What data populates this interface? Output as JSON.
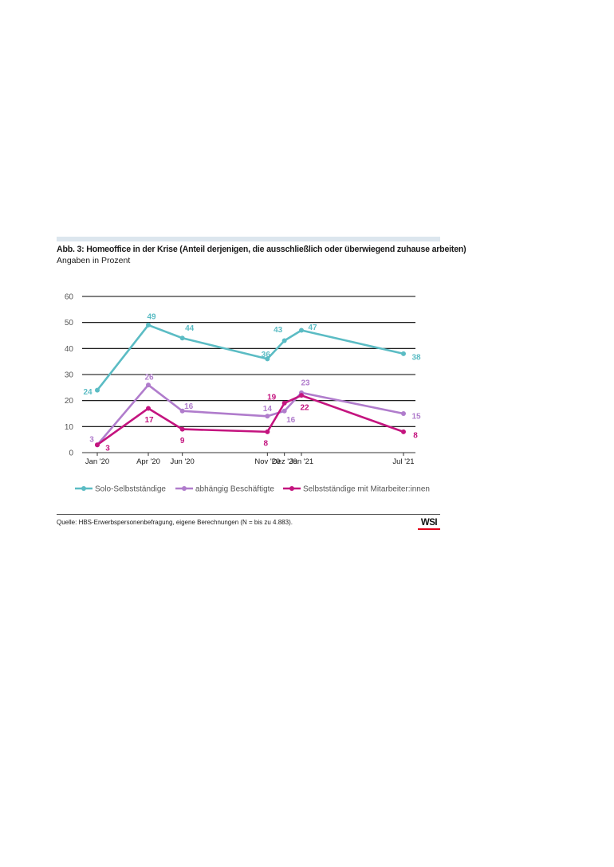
{
  "title": "Abb. 3: Homeoffice in der Krise (Anteil derjenigen, die ausschließlich oder überwiegend zuhause arbeiten)",
  "subtitle": "Angaben in Prozent",
  "source": "Quelle: HBS-Erwerbspersonenbefragung, eigene Berechnungen (N = bis zu 4.883).",
  "logo": "WSI",
  "colors": {
    "solo": "#5bbcc4",
    "abh": "#b07ccc",
    "mit": "#c4147f",
    "grid": "#000000",
    "axis": "#333333"
  },
  "chart_data": {
    "type": "line",
    "ylim": [
      0,
      60
    ],
    "yticks": [
      0,
      10,
      20,
      30,
      40,
      50,
      60
    ],
    "x": [
      "2020-01",
      "2020-04",
      "2020-06",
      "2020-11",
      "2020-12",
      "2021-01",
      "2021-07"
    ],
    "xtick_labels": [
      "Jan '20",
      "Apr '20",
      "Jun '20",
      "Nov '20",
      "Dez '20",
      "Jan '21",
      "Jul '21"
    ],
    "legend_position": "bottom",
    "series": [
      {
        "name": "Solo-Selbstständige",
        "points": [
          {
            "x": "2020-01",
            "y": 24
          },
          {
            "x": "2020-04",
            "y": 49
          },
          {
            "x": "2020-06",
            "y": 44
          },
          {
            "x": "2020-11",
            "y": 36
          },
          {
            "x": "2020-12",
            "y": 43
          },
          {
            "x": "2021-01",
            "y": 47
          },
          {
            "x": "2021-07",
            "y": 38
          }
        ]
      },
      {
        "name": "abhängig Beschäftigte",
        "points": [
          {
            "x": "2020-01",
            "y": 3
          },
          {
            "x": "2020-04",
            "y": 26
          },
          {
            "x": "2020-06",
            "y": 16
          },
          {
            "x": "2020-11",
            "y": 14
          },
          {
            "x": "2020-12",
            "y": 16
          },
          {
            "x": "2021-01",
            "y": 23
          },
          {
            "x": "2021-07",
            "y": 15
          }
        ]
      },
      {
        "name": "Selbstständige mit Mitarbeiter:innen",
        "points": [
          {
            "x": "2020-01",
            "y": 3
          },
          {
            "x": "2020-04",
            "y": 17
          },
          {
            "x": "2020-06",
            "y": 9
          },
          {
            "x": "2020-11",
            "y": 8
          },
          {
            "x": "2020-12",
            "y": 19
          },
          {
            "x": "2021-01",
            "y": 22
          },
          {
            "x": "2021-07",
            "y": 8
          }
        ]
      }
    ]
  }
}
